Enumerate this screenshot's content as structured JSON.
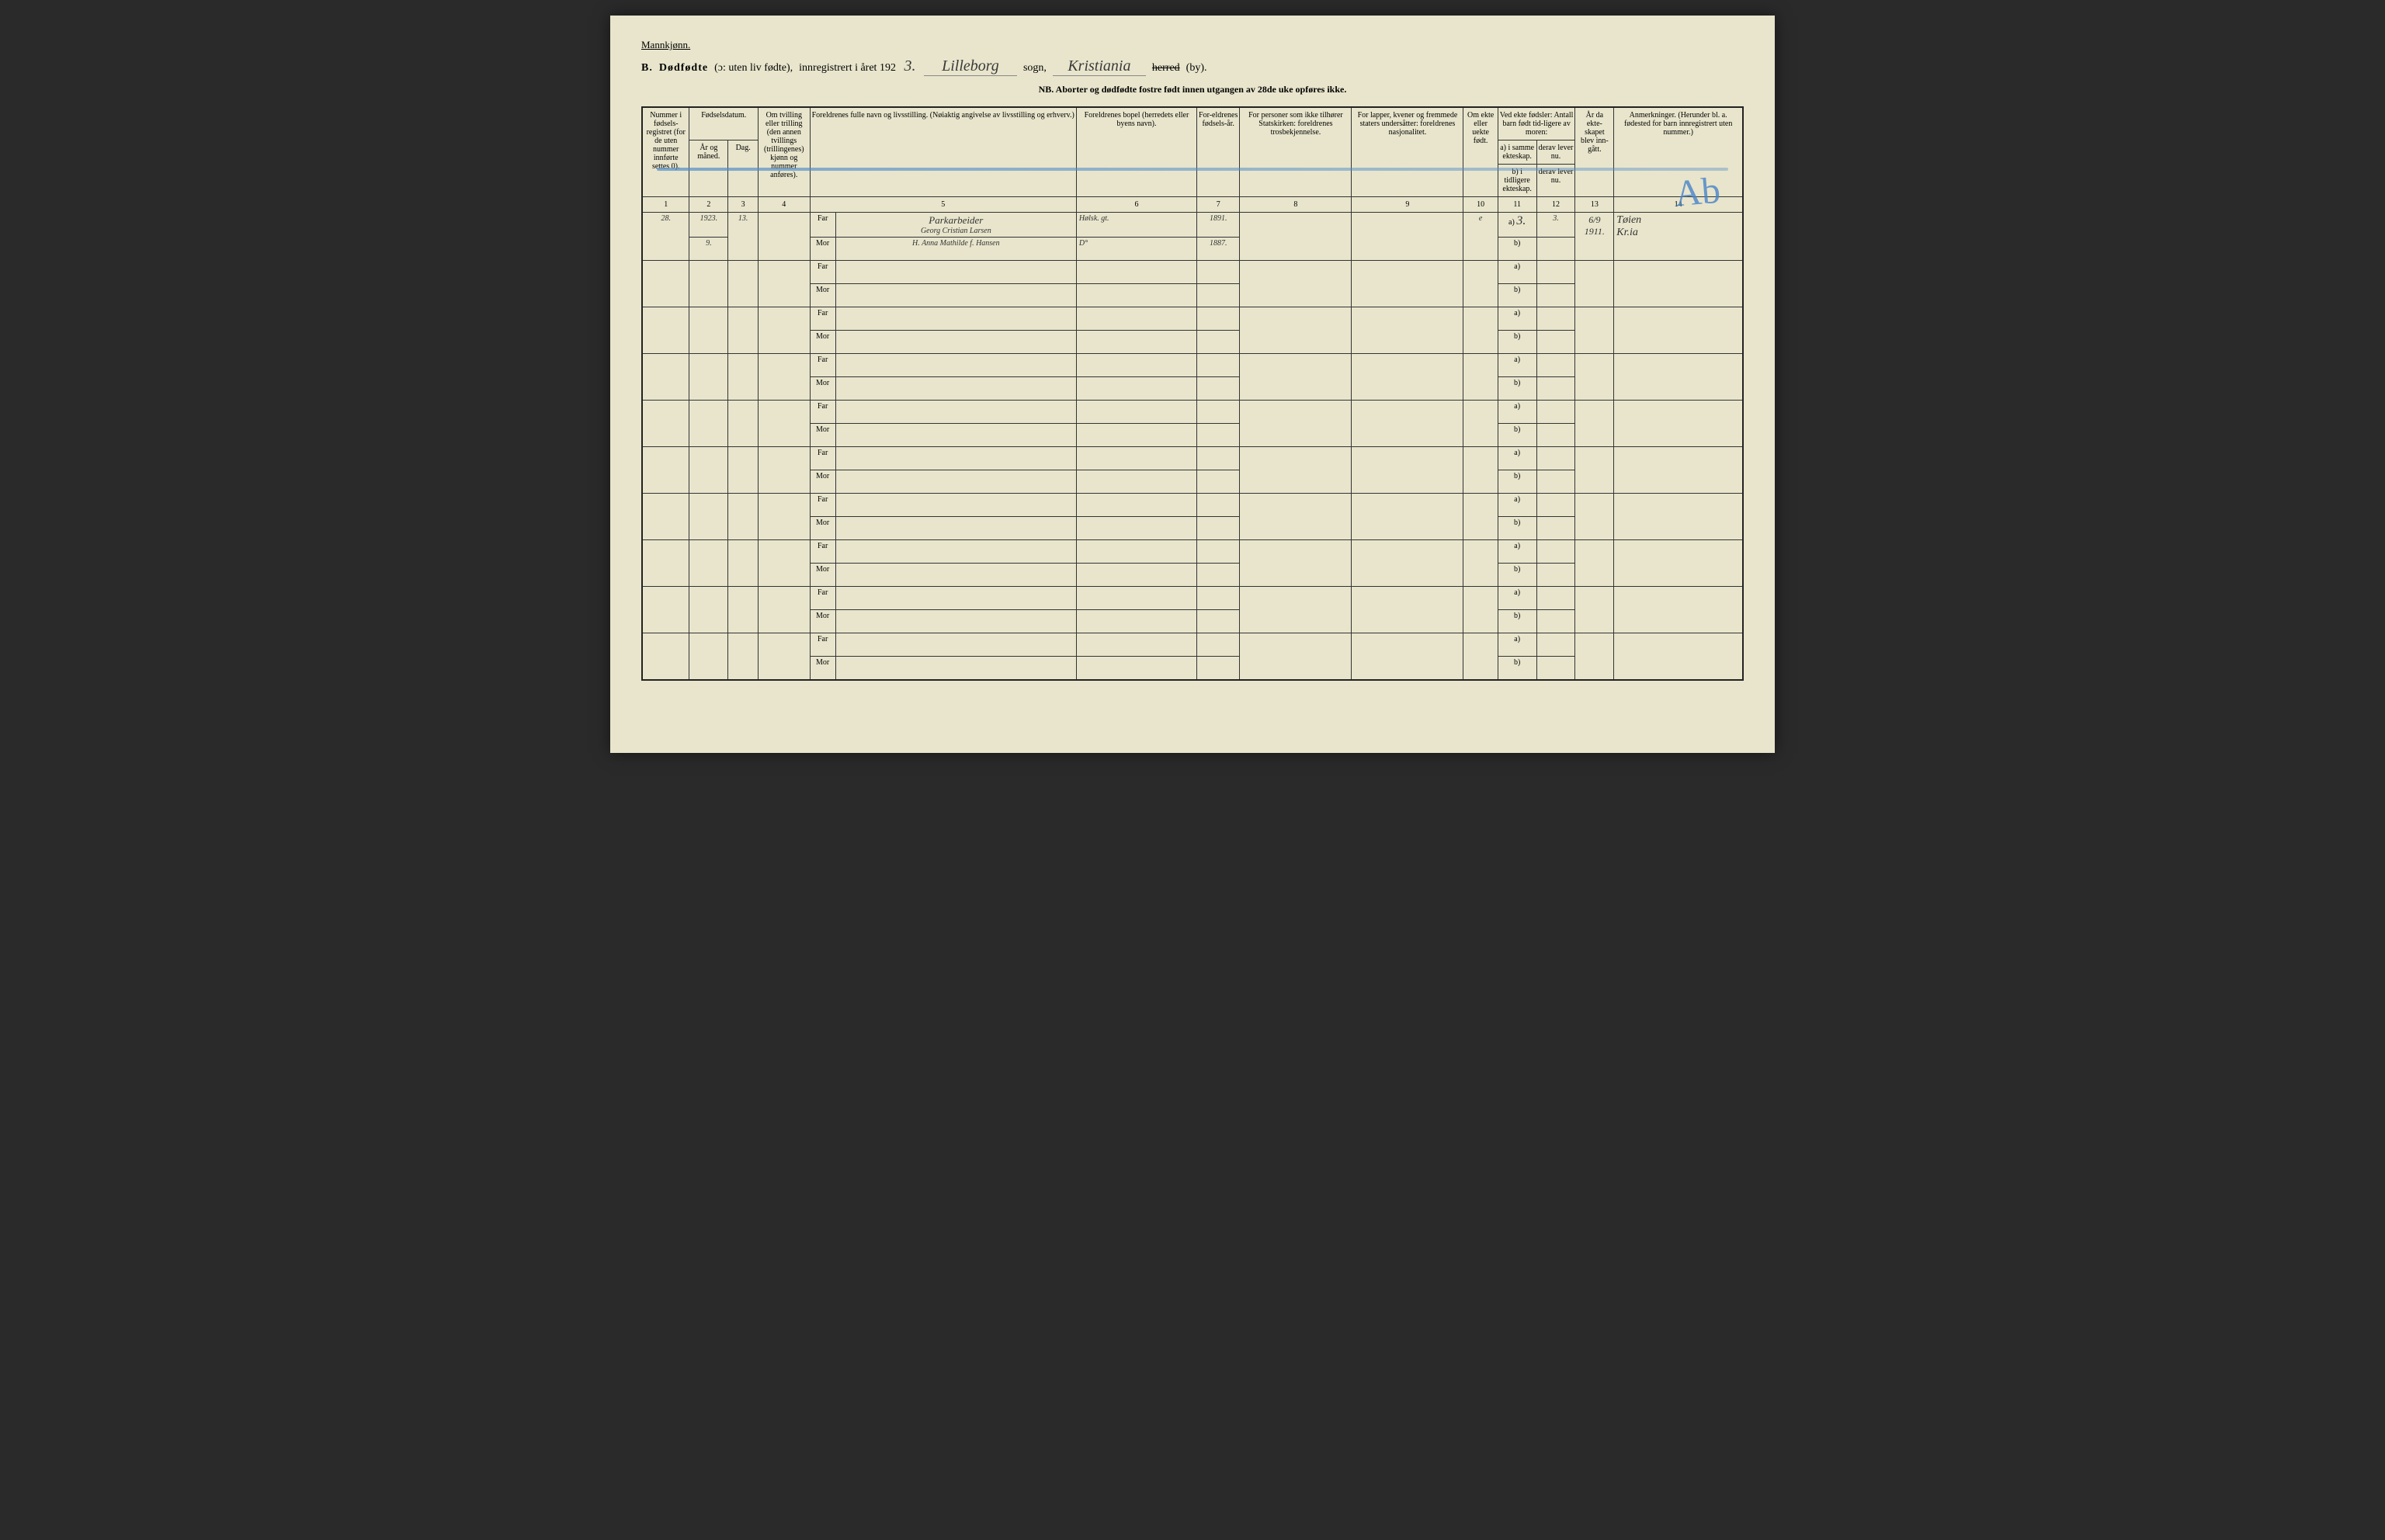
{
  "page": {
    "background_color": "#e8e5cc",
    "border_color": "#222222",
    "text_color": "#222222",
    "handwriting_color": "#3a3a3a",
    "crayon_color": "#5090c8"
  },
  "header": {
    "gender": "Mannkjønn.",
    "section_letter": "B.",
    "title_bold": "Dødfødte",
    "title_paren": "(ɔ: uten liv fødte),",
    "title_rest": "innregistrert i året 192",
    "year_suffix_hw": "3.",
    "parish_hw": "Lilleborg",
    "label_sogn": "sogn,",
    "district_hw": "Kristiania",
    "label_herred": "herred",
    "label_by": "(by).",
    "nb_line": "NB. Aborter og dødfødte fostre født innen utgangen av 28de uke opføres ikke."
  },
  "columns": {
    "c1": "Nummer i fødsels-registret (for de uten nummer innførte settes 0).",
    "c2_group": "Fødselsdatum.",
    "c2": "År og måned.",
    "c3": "Dag.",
    "c4": "Om tvilling eller trilling (den annen tvillings (trillingenes) kjønn og nummer anføres).",
    "c5": "Foreldrenes fulle navn og livsstilling. (Nøiaktig angivelse av livsstilling og erhverv.)",
    "c6": "Foreldrenes bopel (herredets eller byens navn).",
    "c7": "For-eldrenes fødsels-år.",
    "c8": "For personer som ikke tilhører Statskirken: foreldrenes trosbekjennelse.",
    "c9": "For lapper, kvener og fremmede staters undersåtter: foreldrenes nasjonalitet.",
    "c10": "Om ekte eller uekte født.",
    "c11_group": "Ved ekte fødsler: Antall barn født tid-ligere av moren:",
    "c11": "a) i samme ekteskap.",
    "c12_a": "derav lever nu.",
    "c11b": "b) i tidligere ekteskap.",
    "c12_b": "derav lever nu.",
    "c13": "År da ekte-skapet blev inn-gått.",
    "c14": "Anmerkninger. (Herunder bl. a. fødested for barn innregistrert uten nummer.)",
    "nums": [
      "1",
      "2",
      "3",
      "4",
      "5",
      "6",
      "7",
      "8",
      "9",
      "10",
      "11",
      "12",
      "13",
      "14"
    ]
  },
  "row_labels": {
    "far": "Far",
    "mor": "Mor",
    "a": "a)",
    "b": "b)"
  },
  "entry": {
    "number": "28.",
    "year_line": "1923.",
    "month": "9.",
    "day": "13.",
    "occupation": "Parkarbeider",
    "father_name": "Georg Cristian Larsen",
    "mother_name": "H. Anna Mathilde f. Hansen",
    "residence_father": "Hølsk. gt.",
    "residence_mother": "D°",
    "father_birth": "1891.",
    "mother_birth": "1887.",
    "legit": "e",
    "a_same": "3.",
    "a_alive": "3.",
    "remarks_line1": "Tøien",
    "remarks_line2": "Kr.ia",
    "marriage_year": "6/9 1911."
  },
  "annotations": {
    "initials": "Ab"
  },
  "layout": {
    "empty_row_pairs": 9
  }
}
